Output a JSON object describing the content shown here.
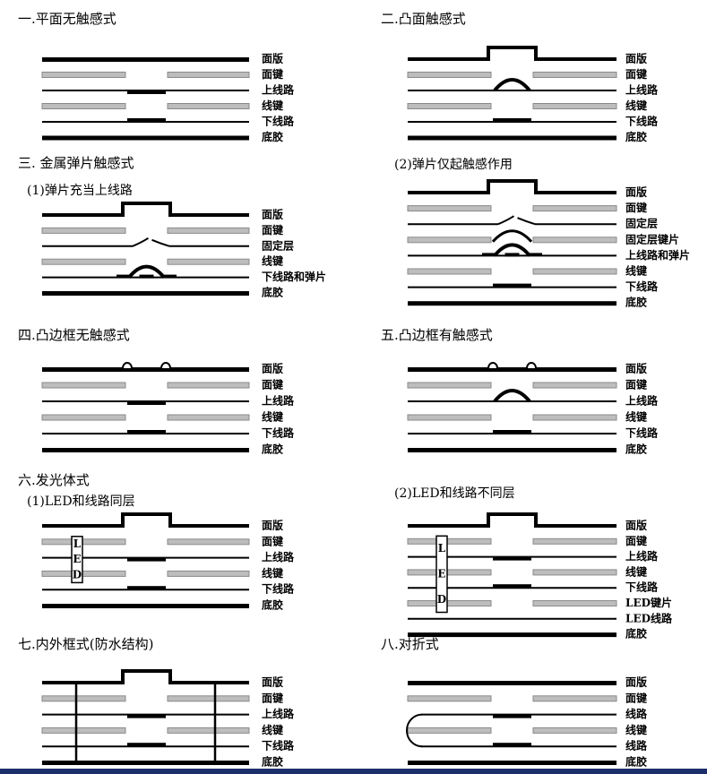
{
  "sections": [
    {
      "title": "一.平面无触感式",
      "layers": [
        "面版",
        "面键",
        "上线路",
        "线键",
        "下线路",
        "底胶"
      ]
    },
    {
      "title": "二.凸面触感式",
      "layers": [
        "面版",
        "面键",
        "上线路",
        "线键",
        "下线路",
        "底胶"
      ]
    },
    {
      "title": "三. 金属弹片触感式",
      "subtitle": "(1)弹片充当上线路",
      "layers": [
        "面版",
        "面键",
        "固定层",
        "线键",
        "下线路和弹片",
        "底胶"
      ]
    },
    {
      "subtitle": "(2)弹片仅起触感作用",
      "layers": [
        "面版",
        "面键",
        "固定层",
        "固定层键片",
        "上线路和弹片",
        "线键",
        "下线路",
        "底胶"
      ]
    },
    {
      "title": "四.凸边框无触感式",
      "layers": [
        "面版",
        "面键",
        "上线路",
        "线键",
        "下线路",
        "底胶"
      ]
    },
    {
      "title": "五.凸边框有触感式",
      "layers": [
        "面版",
        "面键",
        "上线路",
        "线键",
        "下线路",
        "底胶"
      ]
    },
    {
      "title": "六.发光体式",
      "subtitle": "(1)LED和线路同层",
      "layers": [
        "面版",
        "面键",
        "上线路",
        "线键",
        "下线路",
        "底胶"
      ],
      "led": [
        "L",
        "E",
        "D"
      ]
    },
    {
      "subtitle": "(2)LED和线路不同层",
      "layers": [
        "面版",
        "面键",
        "上线路",
        "线键",
        "下线路",
        "LED键片",
        "LED线路",
        "底胶"
      ],
      "led": [
        "L",
        "E",
        "D"
      ]
    },
    {
      "title": "七.内外框式(防水结构)",
      "layers": [
        "面版",
        "面键",
        "上线路",
        "线键",
        "下线路",
        "底胶"
      ]
    },
    {
      "title": "八.对折式",
      "layers": [
        "面版",
        "面键",
        "线路",
        "线键",
        "线路",
        "底胶"
      ]
    }
  ]
}
